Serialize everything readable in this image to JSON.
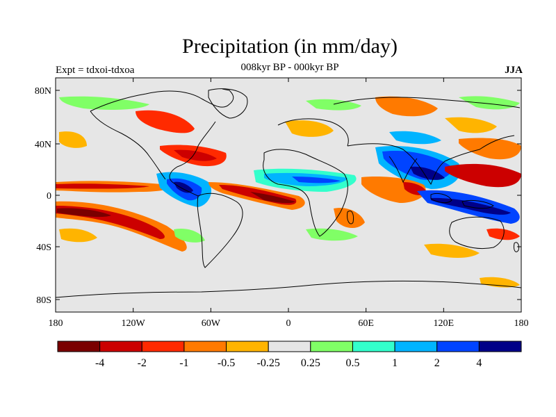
{
  "title": "Precipitation (in mm/day)",
  "subtitle": "008kyr BP - 000kyr BP",
  "left_string": "Expt = tdxoi-tdxoa",
  "right_string": "JJA",
  "map": {
    "lat_ticks": [
      "80N",
      "40N",
      "0",
      "40S",
      "80S"
    ],
    "lon_ticks": [
      "180",
      "120W",
      "60W",
      "0",
      "60E",
      "120E",
      "180"
    ],
    "neutral_color": "#e6e6e6",
    "land_outline_color": "#000000"
  },
  "colorbar": {
    "colors": [
      "#7a0000",
      "#cc0000",
      "#ff2a00",
      "#ff7a00",
      "#ffb400",
      "#e6e6e6",
      "#80ff66",
      "#33ffcc",
      "#00b4ff",
      "#0044ff",
      "#000088"
    ],
    "labels": [
      "-4",
      "-2",
      "-1",
      "-0.5",
      "-0.25",
      "0.25",
      "0.5",
      "1",
      "2",
      "4"
    ]
  }
}
